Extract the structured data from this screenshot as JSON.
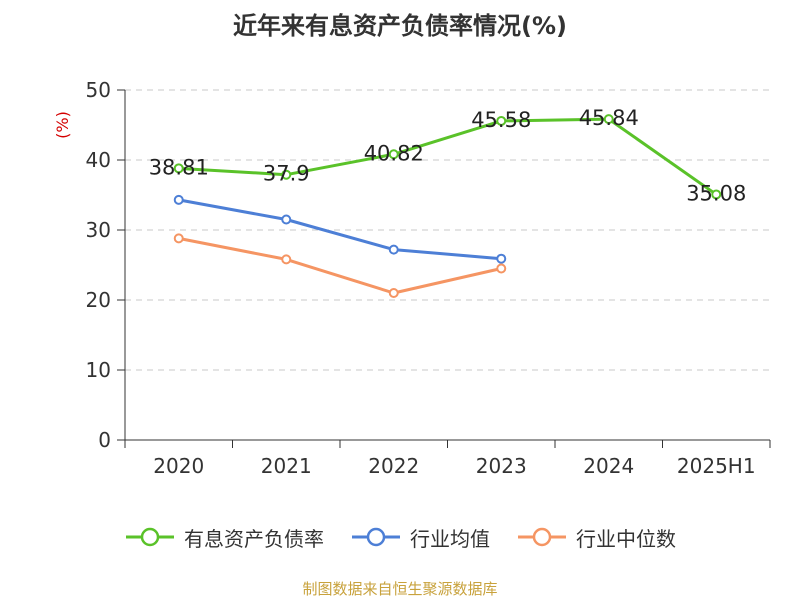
{
  "chart_data": {
    "type": "line",
    "title": "近年来有息资产负债率情况(%)",
    "ylabel": "(%)",
    "xlabel": "",
    "categories": [
      "2020",
      "2021",
      "2022",
      "2023",
      "2024",
      "2025H1"
    ],
    "ylim": [
      0,
      50
    ],
    "yticks": [
      0,
      10,
      20,
      30,
      40,
      50
    ],
    "grid": true,
    "legend_position": "bottom",
    "series": [
      {
        "name": "有息资产负债率",
        "color": "#5ac229",
        "values": [
          38.81,
          37.9,
          40.82,
          45.58,
          45.84,
          35.08
        ],
        "labels": [
          "38.81",
          "37.9",
          "40.82",
          "45.58",
          "45.84",
          "35.08"
        ]
      },
      {
        "name": "行业均值",
        "color": "#4d7fd6",
        "values": [
          34.3,
          31.5,
          27.2,
          25.9,
          null,
          null
        ]
      },
      {
        "name": "行业中位数",
        "color": "#f59563",
        "values": [
          28.8,
          25.8,
          21.0,
          24.5,
          null,
          null
        ]
      }
    ]
  },
  "source": "制图数据来自恒生聚源数据库"
}
